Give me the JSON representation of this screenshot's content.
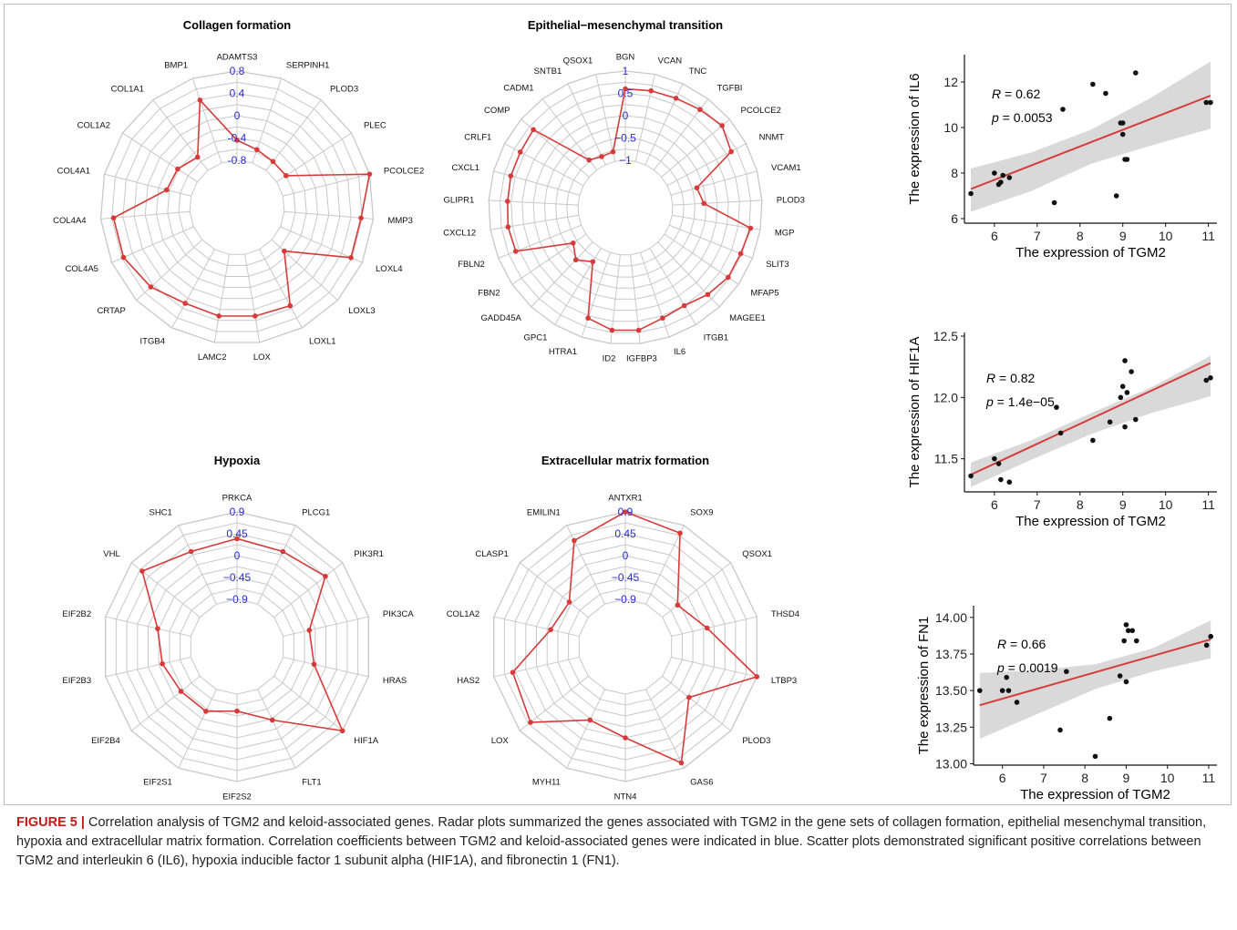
{
  "chart_data": [
    {
      "type": "radar",
      "title": "Collagen formation",
      "ticks": [
        "0.8",
        "0.4",
        "0",
        "-0.4",
        "-0.8"
      ],
      "rlim": [
        -0.8,
        0.8
      ],
      "categories": [
        "ADAMTS3",
        "SERPINH1",
        "PLOD3",
        "PLEC",
        "PCOLCE2",
        "MMP3",
        "LOXL4",
        "LOXL3",
        "LOXL1",
        "LOX",
        "LAMC2",
        "ITGB4",
        "CRTAP",
        "COL4A5",
        "COL4A4",
        "COL4A1",
        "COL1A2",
        "COL1A1",
        "BMP1"
      ],
      "values": [
        -0.44,
        -0.55,
        -0.6,
        -0.6,
        0.8,
        0.58,
        0.58,
        -0.5,
        0.35,
        0.32,
        0.32,
        0.3,
        0.45,
        0.57,
        0.57,
        -0.35,
        -0.38,
        -0.5,
        0.39
      ],
      "color": "#d63a3a"
    },
    {
      "type": "radar",
      "title": "Epithelial−mesenchymal transition",
      "ticks": [
        "1",
        "0.5",
        "0",
        "−0.5",
        "−1"
      ],
      "rlim": [
        -1,
        1
      ],
      "categories": [
        "BGN",
        "VCAN",
        "TNC",
        "TGFBI",
        "PCOLCE2",
        "NNMT",
        "VCAM1",
        "PLOD3",
        "MGP",
        "SLIT3",
        "MFAP5",
        "MAGEE1",
        "ITGB1",
        "IL6",
        "IGFBP3",
        "ID2",
        "HTRA1",
        "GPC1",
        "GADD45A",
        "FBN2",
        "FBLN2",
        "CXCL12",
        "GLIPR1",
        "CXCL1",
        "CRLF1",
        "COMP",
        "CADM1",
        "SNTB1",
        "QSOX1"
      ],
      "values": [
        0.6,
        0.62,
        0.64,
        0.7,
        0.78,
        0.62,
        -0.4,
        -0.3,
        0.78,
        0.72,
        0.72,
        0.62,
        0.5,
        0.55,
        0.7,
        0.7,
        0.55,
        -0.65,
        -0.45,
        -0.65,
        0.58,
        0.6,
        0.58,
        0.6,
        0.6,
        0.64,
        -0.72,
        -0.8,
        -0.78
      ],
      "color": "#d63a3a"
    },
    {
      "type": "radar",
      "title": "Hypoxia",
      "ticks": [
        "0.9",
        "0.45",
        "0",
        "−0.45",
        "−0.9"
      ],
      "rlim": [
        -0.9,
        0.9
      ],
      "categories": [
        "PRKCA",
        "PLCG1",
        "PIK3R1",
        "PIK3CA",
        "HRAS",
        "HIF1A",
        "FLT1",
        "EIF2S2",
        "EIF2S1",
        "EIF2B4",
        "EIF2B3",
        "EIF2B2",
        "VHL",
        "SHC1"
      ],
      "values": [
        0.35,
        0.3,
        0.45,
        -0.35,
        -0.25,
        0.9,
        -0.2,
        -0.55,
        -0.4,
        -0.4,
        -0.3,
        -0.2,
        0.62,
        0.3
      ],
      "color": "#d63a3a"
    },
    {
      "type": "radar",
      "title": "Extracellular matrix formation",
      "ticks": [
        "0.9",
        "0.45",
        "0",
        "−0.45",
        "−0.9"
      ],
      "rlim": [
        -0.9,
        0.9
      ],
      "categories": [
        "ANTXR1",
        "SOX9",
        "QSOX1",
        "THSD4",
        "LTBP3",
        "PLOD3",
        "GAS6",
        "NTN4",
        "MYH11",
        "LOX",
        "HAS2",
        "COL1A2",
        "CLASP1",
        "EMILIN1"
      ],
      "values": [
        0.9,
        0.72,
        -0.5,
        -0.15,
        0.9,
        -0.2,
        0.78,
        0.0,
        -0.2,
        0.62,
        0.5,
        -0.3,
        -0.4,
        0.55
      ],
      "color": "#d63a3a"
    },
    {
      "type": "scatter",
      "xlabel": "The expression of TGM2",
      "ylabel": "The expression of IL6",
      "xticks": [
        6,
        7,
        8,
        9,
        10,
        11
      ],
      "yticks": [
        6,
        8,
        10,
        12
      ],
      "xlim": [
        5.3,
        11.2
      ],
      "ylim": [
        5.8,
        13.2
      ],
      "r_label": "R",
      "r_value": "= 0.62",
      "p_label": "p",
      "p_value": "= 0.0053",
      "points": [
        [
          5.45,
          7.1
        ],
        [
          6.0,
          8.0
        ],
        [
          6.1,
          7.5
        ],
        [
          6.15,
          7.6
        ],
        [
          6.2,
          7.9
        ],
        [
          6.35,
          7.8
        ],
        [
          7.4,
          6.7
        ],
        [
          7.6,
          10.8
        ],
        [
          8.3,
          11.9
        ],
        [
          8.6,
          11.5
        ],
        [
          8.85,
          7.0
        ],
        [
          8.95,
          10.2
        ],
        [
          9.0,
          10.2
        ],
        [
          9.0,
          9.7
        ],
        [
          9.05,
          8.6
        ],
        [
          9.1,
          8.6
        ],
        [
          9.3,
          12.4
        ],
        [
          10.95,
          11.1
        ],
        [
          11.05,
          11.1
        ]
      ],
      "fit": {
        "x": [
          5.45,
          11.05
        ],
        "y": [
          7.3,
          11.4
        ]
      },
      "band_lower": [
        6.3,
        7.2,
        8.4,
        9.2,
        9.95
      ],
      "band_upper": [
        8.2,
        8.9,
        9.9,
        11.3,
        12.9
      ]
    },
    {
      "type": "scatter",
      "xlabel": "The expression of TGM2",
      "ylabel": "The expression of HIF1A",
      "xticks": [
        6,
        7,
        8,
        9,
        10,
        11
      ],
      "yticks": [
        11.5,
        12.0,
        12.5
      ],
      "ytick_labels": [
        "11.5",
        "12.0",
        "12.5"
      ],
      "xlim": [
        5.3,
        11.2
      ],
      "ylim": [
        11.23,
        12.53
      ],
      "r_label": "R",
      "r_value": "= 0.82",
      "p_label": "p",
      "p_value": "= 1.4e−05",
      "points": [
        [
          5.45,
          11.36
        ],
        [
          6.0,
          11.5
        ],
        [
          6.1,
          11.46
        ],
        [
          6.15,
          11.33
        ],
        [
          6.35,
          11.31
        ],
        [
          7.45,
          11.92
        ],
        [
          7.55,
          11.71
        ],
        [
          8.3,
          11.65
        ],
        [
          8.7,
          11.8
        ],
        [
          8.95,
          12.0
        ],
        [
          9.0,
          12.09
        ],
        [
          9.05,
          12.3
        ],
        [
          9.05,
          11.76
        ],
        [
          9.1,
          12.04
        ],
        [
          9.2,
          12.21
        ],
        [
          9.3,
          11.82
        ],
        [
          10.95,
          12.14
        ],
        [
          11.05,
          12.16
        ]
      ],
      "fit": {
        "x": [
          5.45,
          11.05
        ],
        "y": [
          11.37,
          12.28
        ]
      },
      "band_lower": [
        11.27,
        11.49,
        11.7,
        11.87,
        12.01
      ],
      "band_upper": [
        11.47,
        11.65,
        11.87,
        12.08,
        12.34
      ]
    },
    {
      "type": "scatter",
      "xlabel": "The expression of TGM2",
      "ylabel": "The expression of FN1",
      "xticks": [
        6,
        7,
        8,
        9,
        10,
        11
      ],
      "yticks": [
        13.0,
        13.25,
        13.5,
        13.75,
        14.0
      ],
      "ytick_labels": [
        "13.00",
        "13.25",
        "13.50",
        "13.75",
        "14.00"
      ],
      "xlim": [
        5.3,
        11.2
      ],
      "ylim": [
        12.99,
        14.08
      ],
      "r_label": "R",
      "r_value": "= 0.66",
      "p_label": "p",
      "p_value": "= 0.0019",
      "points": [
        [
          5.45,
          13.5
        ],
        [
          6.0,
          13.5
        ],
        [
          6.1,
          13.59
        ],
        [
          6.15,
          13.5
        ],
        [
          6.35,
          13.42
        ],
        [
          7.4,
          13.23
        ],
        [
          7.55,
          13.63
        ],
        [
          8.25,
          13.05
        ],
        [
          8.6,
          13.31
        ],
        [
          8.85,
          13.6
        ],
        [
          8.95,
          13.84
        ],
        [
          9.0,
          13.95
        ],
        [
          9.0,
          13.56
        ],
        [
          9.05,
          13.91
        ],
        [
          9.15,
          13.91
        ],
        [
          9.25,
          13.84
        ],
        [
          10.95,
          13.81
        ],
        [
          11.05,
          13.87
        ]
      ],
      "fit": {
        "x": [
          5.45,
          11.05
        ],
        "y": [
          13.4,
          13.85
        ]
      },
      "band_lower": [
        13.17,
        13.34,
        13.51,
        13.63,
        13.72
      ],
      "band_upper": [
        13.62,
        13.64,
        13.68,
        13.79,
        13.98
      ]
    }
  ],
  "caption": {
    "label": "FIGURE 5 |",
    "text": " Correlation analysis of TGM2 and keloid-associated genes. Radar plots summarized the genes associated with TGM2 in the gene sets of collagen formation, epithelial mesenchymal transition, hypoxia and extracellular matrix formation. Correlation coefficients between TGM2 and keloid-associated genes were indicated in blue. Scatter plots demonstrated significant positive correlations between TGM2 and interleukin 6 (IL6), hypoxia inducible factor 1 subunit alpha (HIF1A), and fibronectin 1 (FN1)."
  }
}
